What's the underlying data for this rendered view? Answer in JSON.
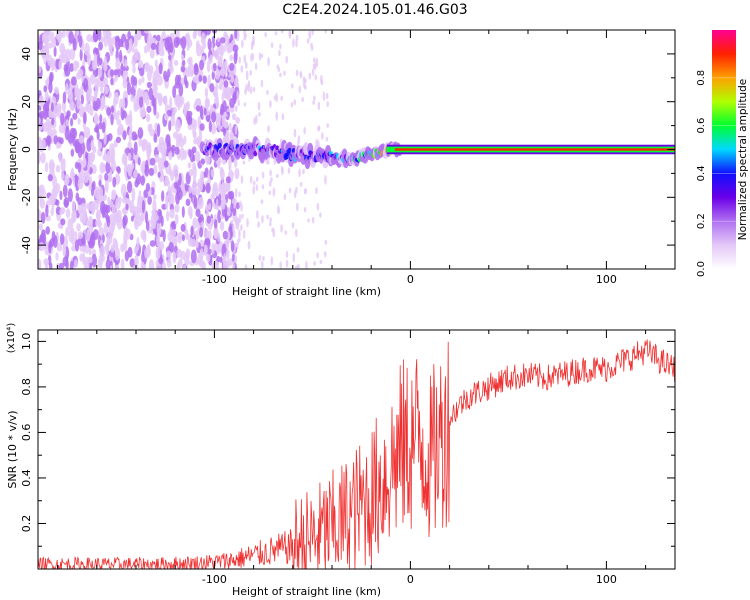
{
  "title": "C2E4.2024.105.01.46.G03",
  "chart_data": [
    {
      "type": "heatmap",
      "xlabel": "Height of straight line (km)",
      "ylabel": "Frequency (Hz)",
      "xlim": [
        -190,
        135
      ],
      "ylim": [
        -50,
        50
      ],
      "x_ticks": [
        -100,
        0,
        100
      ],
      "y_ticks": [
        -40,
        -20,
        0,
        20,
        40
      ],
      "colorbar": {
        "label": "Normalized spectral amplitude",
        "range": [
          0,
          1
        ],
        "ticks": [
          0.0,
          0.2,
          0.4,
          0.6,
          0.8
        ],
        "colors": [
          "#ffffff",
          "#e4c8f8",
          "#b070f0",
          "#6a00e8",
          "#1010ff",
          "#00d8ff",
          "#00ff30",
          "#b0ff00",
          "#ffa000",
          "#ff2000",
          "#ff0090"
        ]
      },
      "signal_track": [
        {
          "x": -105,
          "f": 0,
          "amp": 0.25
        },
        {
          "x": -90,
          "f": 0,
          "amp": 0.3
        },
        {
          "x": -75,
          "f": 0,
          "amp": 0.3
        },
        {
          "x": -60,
          "f": -2,
          "amp": 0.3
        },
        {
          "x": -45,
          "f": -3,
          "amp": 0.3
        },
        {
          "x": -30,
          "f": -4,
          "amp": 0.4
        },
        {
          "x": -20,
          "f": -2,
          "amp": 0.5
        },
        {
          "x": -10,
          "f": 0,
          "amp": 0.7
        },
        {
          "x": 0,
          "f": 0,
          "amp": 0.9
        },
        {
          "x": 135,
          "f": 0,
          "amp": 0.95
        }
      ],
      "noise_region": {
        "x_from": -190,
        "x_to": -100,
        "amp": 0.15
      }
    },
    {
      "type": "line",
      "xlabel": "Height of straight line (km)",
      "ylabel": "SNR (10 * v/v)",
      "y_multiplier": "(x10⁴)",
      "xlim": [
        -190,
        135
      ],
      "ylim": [
        0,
        1.05
      ],
      "x_ticks": [
        -100,
        0,
        100
      ],
      "y_ticks": [
        0.2,
        0.4,
        0.6,
        0.8,
        1.0
      ],
      "series": [
        {
          "color": "#f03030",
          "x": [
            -190,
            -170,
            -150,
            -130,
            -110,
            -100,
            -90,
            -80,
            -70,
            -60,
            -50,
            -40,
            -30,
            -20,
            -15,
            -10,
            -5,
            0,
            5,
            10,
            15,
            20,
            25,
            30,
            40,
            50,
            60,
            70,
            80,
            90,
            100,
            110,
            120,
            130,
            135
          ],
          "y": [
            0.02,
            0.02,
            0.02,
            0.02,
            0.025,
            0.03,
            0.04,
            0.06,
            0.08,
            0.1,
            0.13,
            0.18,
            0.24,
            0.32,
            0.38,
            0.45,
            0.52,
            0.55,
            0.58,
            0.48,
            0.56,
            0.66,
            0.72,
            0.76,
            0.8,
            0.84,
            0.85,
            0.84,
            0.86,
            0.88,
            0.88,
            0.92,
            0.96,
            0.9,
            0.88
          ]
        }
      ]
    }
  ]
}
